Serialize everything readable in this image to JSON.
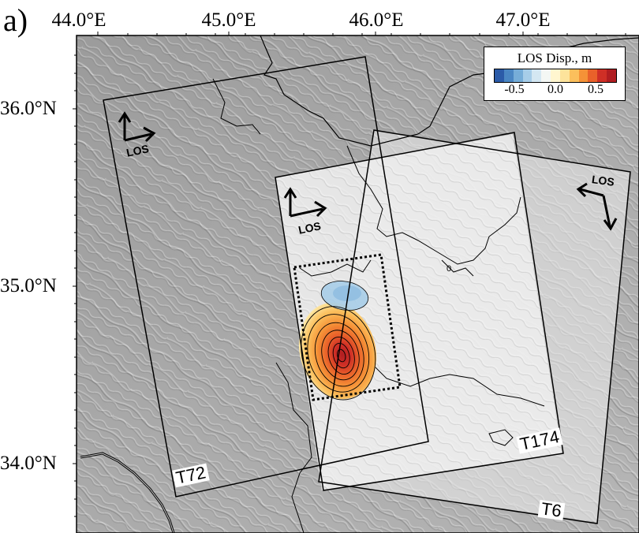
{
  "panel_label": "a)",
  "axes": {
    "lon_ticks": [
      "44.0°E",
      "45.0°E",
      "46.0°E",
      "47.0°E"
    ],
    "lat_ticks": [
      "36.0°N",
      "35.0°N",
      "34.0°N"
    ]
  },
  "legend": {
    "title": "LOS Disp., m",
    "ticks": [
      "-0.5",
      "0.0",
      "0.5"
    ],
    "colors": [
      "#2b5ba8",
      "#4a86c3",
      "#76add8",
      "#a7cde8",
      "#d4e7f2",
      "#f4f7f4",
      "#fff6cf",
      "#fde39b",
      "#fbbf5c",
      "#f59237",
      "#e9612a",
      "#cf2f26",
      "#b01d21"
    ]
  },
  "tracks": [
    {
      "name": "T72",
      "los": "LOS"
    },
    {
      "name": "T174",
      "los": "LOS"
    },
    {
      "name": "T6",
      "los": "LOS"
    }
  ],
  "contour_label": "0"
}
